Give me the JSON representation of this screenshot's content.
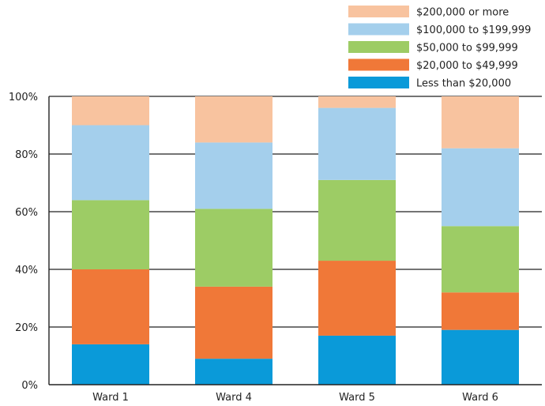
{
  "chart_data": {
    "type": "bar",
    "stacked": true,
    "categories": [
      "Ward 1",
      "Ward 4",
      "Ward 5",
      "Ward 6"
    ],
    "series": [
      {
        "name": "Less than $20,000",
        "color": "#0a9ad9",
        "values": [
          14,
          9,
          17,
          19
        ]
      },
      {
        "name": "$20,000 to $49,999",
        "color": "#f07838",
        "values": [
          26,
          25,
          26,
          13
        ]
      },
      {
        "name": "$50,000 to $99,999",
        "color": "#9dcc65",
        "values": [
          24,
          27,
          28,
          23
        ]
      },
      {
        "name": "$100,000 to $199,999",
        "color": "#a4cfec",
        "values": [
          26,
          23,
          25,
          27
        ]
      },
      {
        "name": "$200,000 or more",
        "color": "#f8c39f",
        "values": [
          10,
          16,
          4,
          18
        ]
      }
    ],
    "ylim": [
      0,
      100
    ],
    "yticks": [
      0,
      20,
      40,
      60,
      80,
      100
    ],
    "ytick_labels": [
      "0%",
      "20%",
      "40%",
      "60%",
      "80%",
      "100%"
    ],
    "title": "",
    "xlabel": "",
    "ylabel": "",
    "grid": true,
    "legend_position": "top-right"
  }
}
